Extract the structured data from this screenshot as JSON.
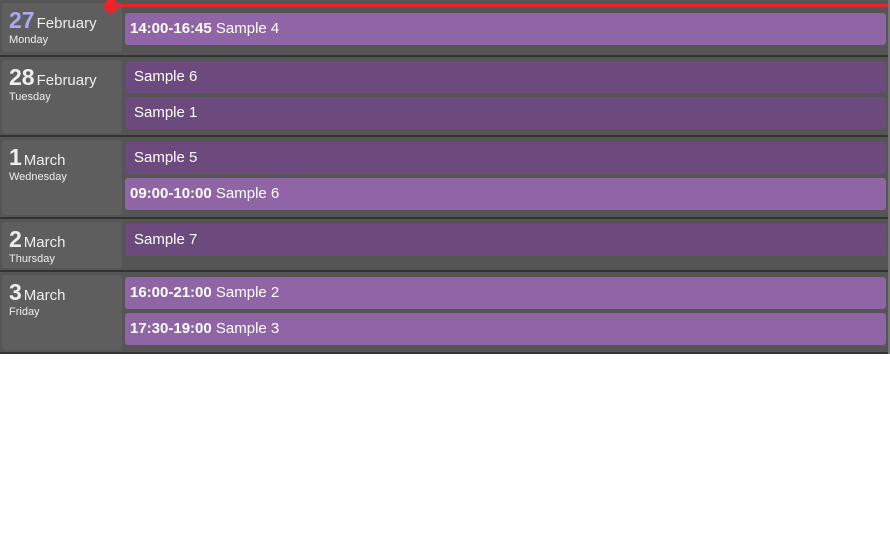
{
  "colors": {
    "now_line": "#e8262a",
    "past_event": "#6d4a7d",
    "event": "#9065a6",
    "today_number": "#a9a8f5"
  },
  "days": [
    {
      "num": "27",
      "month": "February",
      "weekday": "Monday",
      "today": true,
      "events": [
        {
          "time": "14:00-16:45",
          "title": "Sample 4"
        }
      ]
    },
    {
      "num": "28",
      "month": "February",
      "weekday": "Tuesday",
      "events": [
        {
          "time": "",
          "title": "Sample 6"
        },
        {
          "time": "",
          "title": "Sample 1"
        }
      ]
    },
    {
      "num": "1",
      "month": "March",
      "weekday": "Wednesday",
      "events": [
        {
          "time": "",
          "title": "Sample 5"
        },
        {
          "time": "09:00-10:00",
          "title": "Sample 6"
        }
      ]
    },
    {
      "num": "2",
      "month": "March",
      "weekday": "Thursday",
      "events": [
        {
          "time": "",
          "title": "Sample 7"
        }
      ]
    },
    {
      "num": "3",
      "month": "March",
      "weekday": "Friday",
      "events": [
        {
          "time": "16:00-21:00",
          "title": "Sample 2"
        },
        {
          "time": "17:30-19:00",
          "title": "Sample 3"
        }
      ]
    }
  ]
}
